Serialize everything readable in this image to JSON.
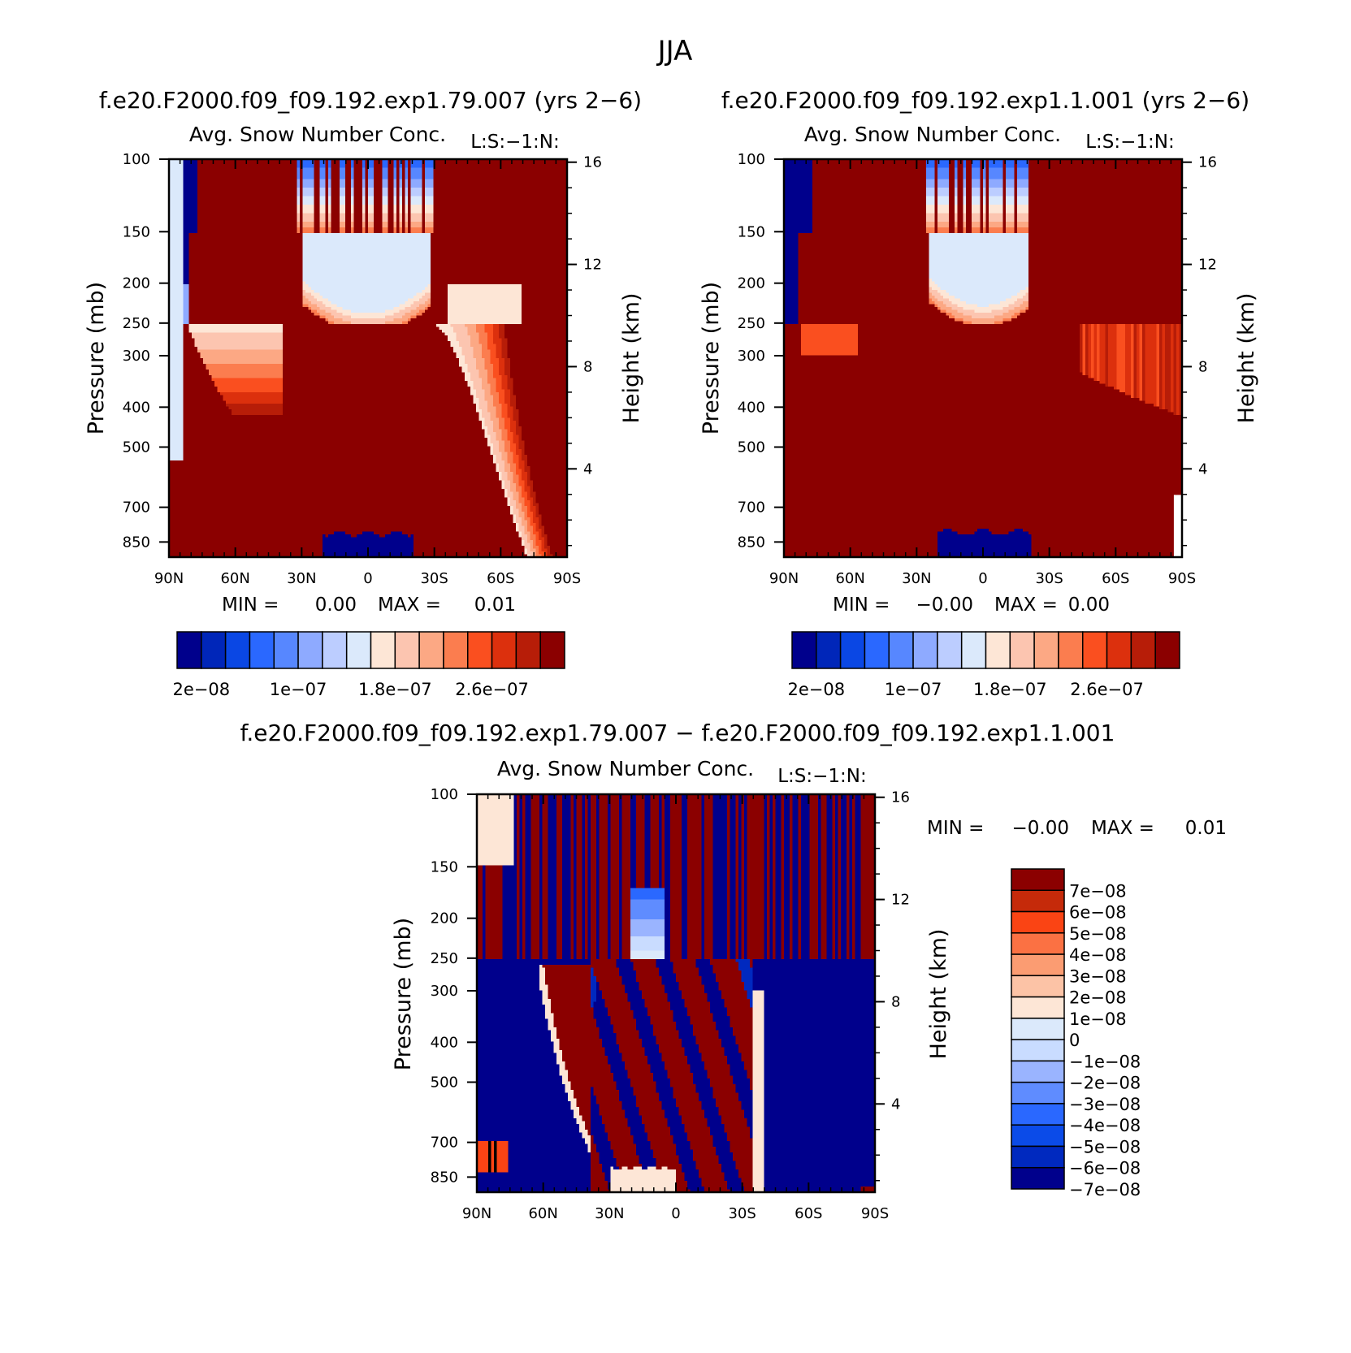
{
  "chart_data": {
    "type": "heatmap",
    "title": "JJA",
    "colors": {
      "abs": [
        "#00008c",
        "#0026b9",
        "#0a47e4",
        "#2a68ff",
        "#5787ff",
        "#8eaaff",
        "#bccdff",
        "#dbe9fb",
        "#fde6d6",
        "#fcc5b0",
        "#fca884",
        "#fb7d4f",
        "#fa4f1f",
        "#dc300d",
        "#b71d08",
        "#8b0000"
      ],
      "diff": [
        "#00008c",
        "#0029bf",
        "#0b4be8",
        "#2a68ff",
        "#5f8cff",
        "#9ab4ff",
        "#c9dcff",
        "#dbe9fb",
        "#fde6d6",
        "#fcc3a6",
        "#fb9c72",
        "#fb7143",
        "#fa4414",
        "#c52a0a",
        "#8b0000"
      ]
    },
    "panels": [
      {
        "id": "model1",
        "case": "f.e20.F2000.f09_f09.192.exp1.79.007 (yrs 2−6)",
        "variable": "Avg. Snow Number Conc.",
        "code": "L:S:−1:N:",
        "ylabel": "Pressure (mb)",
        "y2label": "Height (km)",
        "x_ticks": [
          "90N",
          "60N",
          "30N",
          "0",
          "30S",
          "60S",
          "90S"
        ],
        "p_ticks": [
          "100",
          "150",
          "200",
          "250",
          "300",
          "400",
          "500",
          "700",
          "850"
        ],
        "z_ticks": [
          "16",
          "12",
          "8",
          "4"
        ],
        "min_label": "MIN =",
        "min_value": "0.00",
        "max_label": "MAX =",
        "max_value": "0.01",
        "colorbar_labels": [
          "2e−08",
          "1e−07",
          "1.8e−07",
          "2.6e−07"
        ]
      },
      {
        "id": "model2",
        "case": "f.e20.F2000.f09_f09.192.exp1.1.001 (yrs 2−6)",
        "variable": "Avg. Snow Number Conc.",
        "code": "L:S:−1:N:",
        "ylabel": "Pressure (mb)",
        "y2label": "Height (km)",
        "x_ticks": [
          "90N",
          "60N",
          "30N",
          "0",
          "30S",
          "60S",
          "90S"
        ],
        "p_ticks": [
          "100",
          "150",
          "200",
          "250",
          "300",
          "400",
          "500",
          "700",
          "850"
        ],
        "z_ticks": [
          "16",
          "12",
          "8",
          "4"
        ],
        "min_label": "MIN =",
        "min_value": "−0.00",
        "max_label": "MAX =",
        "max_value": "0.00",
        "colorbar_labels": [
          "2e−08",
          "1e−07",
          "1.8e−07",
          "2.6e−07"
        ]
      },
      {
        "id": "difference",
        "case": "f.e20.F2000.f09_f09.192.exp1.79.007 − f.e20.F2000.f09_f09.192.exp1.1.001",
        "variable": "Avg. Snow Number Conc.",
        "code": "L:S:−1:N:",
        "ylabel": "Pressure (mb)",
        "y2label": "Height (km)",
        "x_ticks": [
          "90N",
          "60N",
          "30N",
          "0",
          "30S",
          "60S",
          "90S"
        ],
        "p_ticks": [
          "100",
          "150",
          "200",
          "250",
          "300",
          "400",
          "500",
          "700",
          "850"
        ],
        "z_ticks": [
          "16",
          "12",
          "8",
          "4"
        ],
        "min_label": "MIN =",
        "min_value": "−0.00",
        "max_label": "MAX =",
        "max_value": "0.01",
        "colorbar_labels": [
          "7e−08",
          "6e−08",
          "5e−08",
          "4e−08",
          "3e−08",
          "2e−08",
          "1e−08",
          "0",
          "−1e−08",
          "−2e−08",
          "−3e−08",
          "−4e−08",
          "−5e−08",
          "−6e−08",
          "−7e−08"
        ]
      }
    ]
  }
}
